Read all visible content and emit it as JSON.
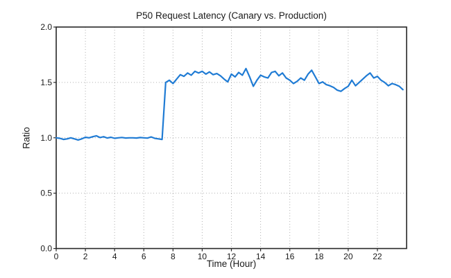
{
  "figure": {
    "title": "P50 Request Latency (Canary vs. Production)",
    "xlabel": "Time (Hour)",
    "ylabel": "Ratio"
  },
  "chart_data": {
    "type": "line",
    "title": "P50 Request Latency (Canary vs. Production)",
    "xlabel": "Time (Hour)",
    "ylabel": "Ratio",
    "xlim": [
      0,
      24
    ],
    "ylim": [
      0.0,
      2.0
    ],
    "grid": true,
    "legend": "none",
    "xticks": [
      {
        "v": 0,
        "label": "0"
      },
      {
        "v": 2,
        "label": "2"
      },
      {
        "v": 4,
        "label": "4"
      },
      {
        "v": 6,
        "label": "6"
      },
      {
        "v": 8,
        "label": "8"
      },
      {
        "v": 10,
        "label": "10"
      },
      {
        "v": 12,
        "label": "12"
      },
      {
        "v": 14,
        "label": "14"
      },
      {
        "v": 16,
        "label": "16"
      },
      {
        "v": 18,
        "label": "18"
      },
      {
        "v": 20,
        "label": "20"
      },
      {
        "v": 22,
        "label": "22"
      }
    ],
    "yticks": [
      {
        "v": 0.0,
        "label": "0.0"
      },
      {
        "v": 0.5,
        "label": "0.5"
      },
      {
        "v": 1.0,
        "label": "1.0"
      },
      {
        "v": 1.5,
        "label": "1.5"
      },
      {
        "v": 2.0,
        "label": "2.0"
      }
    ],
    "colors": {
      "line": "#1f7bd4",
      "frame": "#262626",
      "grid": "#b0b0b0",
      "text": "#1a1a1a",
      "background": "#ffffff"
    },
    "series": [
      {
        "x": [
          0.0,
          0.25,
          0.5,
          0.75,
          1.0,
          1.25,
          1.5,
          1.75,
          2.0,
          2.25,
          2.5,
          2.75,
          3.0,
          3.25,
          3.5,
          3.75,
          4.0,
          4.25,
          4.5,
          4.75,
          5.0,
          5.25,
          5.5,
          5.75,
          6.0,
          6.25,
          6.5,
          6.75,
          7.0,
          7.25,
          7.5,
          7.75,
          8.0,
          8.25,
          8.5,
          8.75,
          9.0,
          9.25,
          9.5,
          9.75,
          10.0,
          10.25,
          10.5,
          10.75,
          11.0,
          11.25,
          11.5,
          11.75,
          12.0,
          12.25,
          12.5,
          12.75,
          13.0,
          13.25,
          13.5,
          13.75,
          14.0,
          14.25,
          14.5,
          14.75,
          15.0,
          15.25,
          15.5,
          15.75,
          16.0,
          16.25,
          16.5,
          16.75,
          17.0,
          17.25,
          17.5,
          17.75,
          18.0,
          18.25,
          18.5,
          18.75,
          19.0,
          19.25,
          19.5,
          19.75,
          20.0,
          20.25,
          20.5,
          20.75,
          21.0,
          21.25,
          21.5,
          21.75,
          22.0,
          22.25,
          22.5,
          22.75,
          23.0,
          23.25,
          23.5,
          23.75
        ],
        "y": [
          1.0,
          0.995,
          0.985,
          0.99,
          1.0,
          0.99,
          0.98,
          0.99,
          1.005,
          1.0,
          1.01,
          1.018,
          1.002,
          1.01,
          0.998,
          1.005,
          0.995,
          1.0,
          1.003,
          0.998,
          1.0,
          1.0,
          0.998,
          1.002,
          1.0,
          0.997,
          1.008,
          0.995,
          0.99,
          0.985,
          1.5,
          1.52,
          1.49,
          1.53,
          1.57,
          1.555,
          1.585,
          1.565,
          1.6,
          1.585,
          1.6,
          1.575,
          1.595,
          1.57,
          1.58,
          1.56,
          1.53,
          1.505,
          1.575,
          1.55,
          1.59,
          1.565,
          1.625,
          1.55,
          1.465,
          1.52,
          1.565,
          1.55,
          1.54,
          1.59,
          1.6,
          1.56,
          1.585,
          1.54,
          1.52,
          1.49,
          1.51,
          1.54,
          1.52,
          1.575,
          1.61,
          1.55,
          1.49,
          1.505,
          1.48,
          1.47,
          1.455,
          1.43,
          1.42,
          1.445,
          1.465,
          1.52,
          1.47,
          1.5,
          1.53,
          1.56,
          1.585,
          1.54,
          1.555,
          1.52,
          1.5,
          1.47,
          1.49,
          1.48,
          1.465,
          1.435
        ]
      }
    ]
  }
}
